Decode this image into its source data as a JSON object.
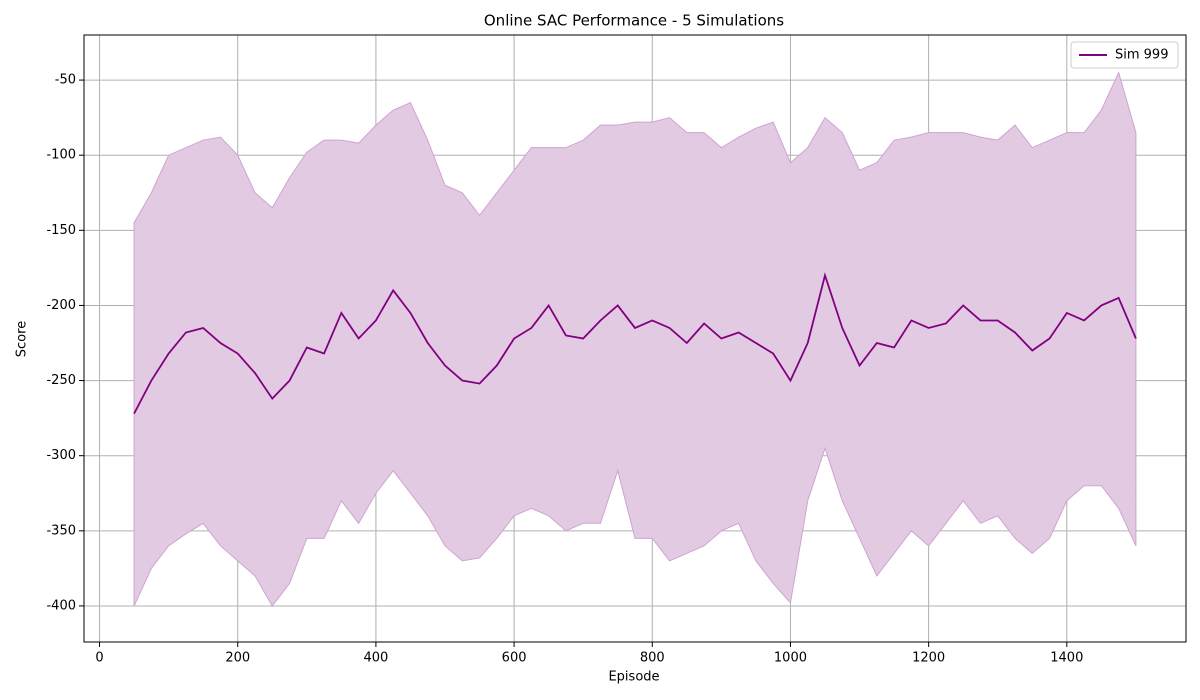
{
  "chart_data": {
    "type": "line",
    "title": "Online SAC Performance - 5 Simulations",
    "x_label": "Episode",
    "y_label": "Score",
    "x": [
      50,
      75,
      100,
      125,
      150,
      175,
      200,
      225,
      250,
      275,
      300,
      325,
      350,
      375,
      400,
      425,
      450,
      475,
      500,
      525,
      550,
      575,
      600,
      625,
      650,
      675,
      700,
      725,
      750,
      775,
      800,
      825,
      850,
      875,
      900,
      925,
      950,
      975,
      1000,
      1025,
      1050,
      1075,
      1100,
      1125,
      1150,
      1175,
      1200,
      1225,
      1250,
      1275,
      1300,
      1325,
      1350,
      1375,
      1400,
      1425,
      1450,
      1475,
      1500
    ],
    "series": [
      {
        "name": "Sim 999",
        "color": "#800080",
        "fill_color": "#e3cae3",
        "fill_edge": "#cfa3cf",
        "values": [
          -272,
          -250,
          -232,
          -218,
          -215,
          -225,
          -232,
          -245,
          -262,
          -250,
          -228,
          -232,
          -205,
          -222,
          -210,
          -190,
          -205,
          -225,
          -240,
          -250,
          -252,
          -240,
          -222,
          -215,
          -200,
          -220,
          -222,
          -210,
          -200,
          -215,
          -210,
          -215,
          -225,
          -212,
          -222,
          -218,
          -225,
          -232,
          -250,
          -225,
          -180,
          -215,
          -240,
          -225,
          -228,
          -210,
          -215,
          -212,
          -200,
          -210,
          -210,
          -218,
          -230,
          -222,
          -205,
          -210,
          -200,
          -195,
          -222
        ],
        "upper": [
          -145,
          -125,
          -100,
          -95,
          -90,
          -88,
          -100,
          -125,
          -135,
          -115,
          -98,
          -90,
          -90,
          -92,
          -80,
          -70,
          -65,
          -90,
          -120,
          -125,
          -140,
          -125,
          -110,
          -95,
          -95,
          -95,
          -90,
          -80,
          -80,
          -78,
          -78,
          -75,
          -85,
          -85,
          -95,
          -88,
          -82,
          -78,
          -105,
          -95,
          -75,
          -85,
          -110,
          -105,
          -90,
          -88,
          -85,
          -85,
          -85,
          -88,
          -90,
          -80,
          -95,
          -90,
          -85,
          -85,
          -70,
          -45,
          -85
        ],
        "lower": [
          -400,
          -375,
          -360,
          -352,
          -345,
          -360,
          -370,
          -380,
          -400,
          -385,
          -355,
          -355,
          -330,
          -345,
          -325,
          -310,
          -325,
          -340,
          -360,
          -370,
          -368,
          -355,
          -340,
          -335,
          -340,
          -350,
          -345,
          -345,
          -310,
          -355,
          -355,
          -370,
          -365,
          -360,
          -350,
          -345,
          -370,
          -385,
          -398,
          -330,
          -295,
          -330,
          -355,
          -380,
          -365,
          -350,
          -360,
          -345,
          -330,
          -345,
          -340,
          -355,
          -365,
          -355,
          -330,
          -320,
          -320,
          -335,
          -360
        ]
      }
    ],
    "xlim": [
      -22.5,
      1572.5
    ],
    "ylim": [
      -424,
      -20
    ],
    "xticks": [
      0,
      200,
      400,
      600,
      800,
      1000,
      1200,
      1400
    ],
    "yticks": [
      -400,
      -350,
      -300,
      -250,
      -200,
      -150,
      -100,
      -50
    ],
    "grid": true,
    "legend": "upper right"
  }
}
